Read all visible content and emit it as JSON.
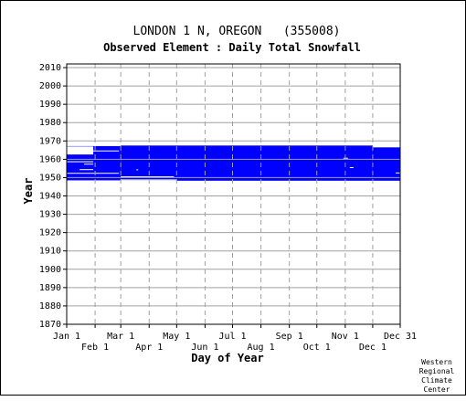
{
  "chart_data": {
    "type": "heatmap",
    "title": "LONDON 1 N, OREGON   (355008)",
    "subtitle": "Observed Element : Daily Total Snowfall",
    "xlabel": "Day of Year",
    "ylabel": "Year",
    "ylim": [
      1870,
      2012
    ],
    "xlim": [
      1,
      365
    ],
    "yticks": [
      1870,
      1880,
      1890,
      1900,
      1910,
      1920,
      1930,
      1940,
      1950,
      1960,
      1970,
      1980,
      1990,
      2000,
      2010
    ],
    "xticks_top": [
      {
        "label": "Jan 1",
        "day": 1
      },
      {
        "label": "Mar 1",
        "day": 60
      },
      {
        "label": "May 1",
        "day": 121
      },
      {
        "label": "Jul 1",
        "day": 182
      },
      {
        "label": "Sep 1",
        "day": 244
      },
      {
        "label": "Nov 1",
        "day": 305
      },
      {
        "label": "Dec 31",
        "day": 365
      }
    ],
    "xticks_bottom": [
      {
        "label": "Feb 1",
        "day": 32
      },
      {
        "label": "Apr 1",
        "day": 91
      },
      {
        "label": "Jun 1",
        "day": 152
      },
      {
        "label": "Aug 1",
        "day": 213
      },
      {
        "label": "Oct 1",
        "day": 274
      },
      {
        "label": "Dec 1",
        "day": 335
      }
    ],
    "grid": true,
    "data_color": "#0000ff",
    "coverage_blocks": [
      {
        "day_start": 1,
        "day_end": 60,
        "year_start": 1948.5,
        "year_end": 1967.2
      },
      {
        "day_start": 60,
        "day_end": 335,
        "year_start": 1948.3,
        "year_end": 1967.5
      },
      {
        "day_start": 335,
        "day_end": 365,
        "year_start": 1948.3,
        "year_end": 1966.5
      }
    ],
    "gaps": [
      {
        "day": 1,
        "year_start": 1965,
        "year_end": 1966
      },
      {
        "day_start": 1,
        "day_end": 30,
        "year_start": 1962.6,
        "year_end": 1967
      },
      {
        "day_start": 30,
        "day_end": 58,
        "year_start": 1964.3,
        "year_end": 1964.8
      },
      {
        "day_start": 1,
        "day_end": 30,
        "year_start": 1958.6,
        "year_end": 1958.9
      },
      {
        "day_start": 20,
        "day_end": 30,
        "year_start": 1957.3,
        "year_end": 1957.6
      },
      {
        "day_start": 15,
        "day_end": 30,
        "year_start": 1954.3,
        "year_end": 1954.6
      },
      {
        "day_start": 1,
        "day_end": 58,
        "year_start": 1952.2,
        "year_end": 1952.6
      },
      {
        "day_start": 60,
        "day_end": 118,
        "year_start": 1950.4,
        "year_end": 1950.7
      },
      {
        "day_start": 60,
        "day_end": 121,
        "year_start": 1948.3,
        "year_end": 1949.0
      },
      {
        "day_start": 303,
        "day_end": 308,
        "year_start": 1960.5,
        "year_end": 1960.8
      },
      {
        "day_start": 310,
        "day_end": 314,
        "year_start": 1955.4,
        "year_end": 1955.7
      },
      {
        "day_start": 77,
        "day_end": 79,
        "year_start": 1954.2,
        "year_end": 1954.5
      },
      {
        "day_start": 360,
        "day_end": 365,
        "year_start": 1952.5,
        "year_end": 1952.8
      }
    ]
  },
  "credit": [
    "Western",
    "Regional",
    "Climate",
    "Center"
  ]
}
